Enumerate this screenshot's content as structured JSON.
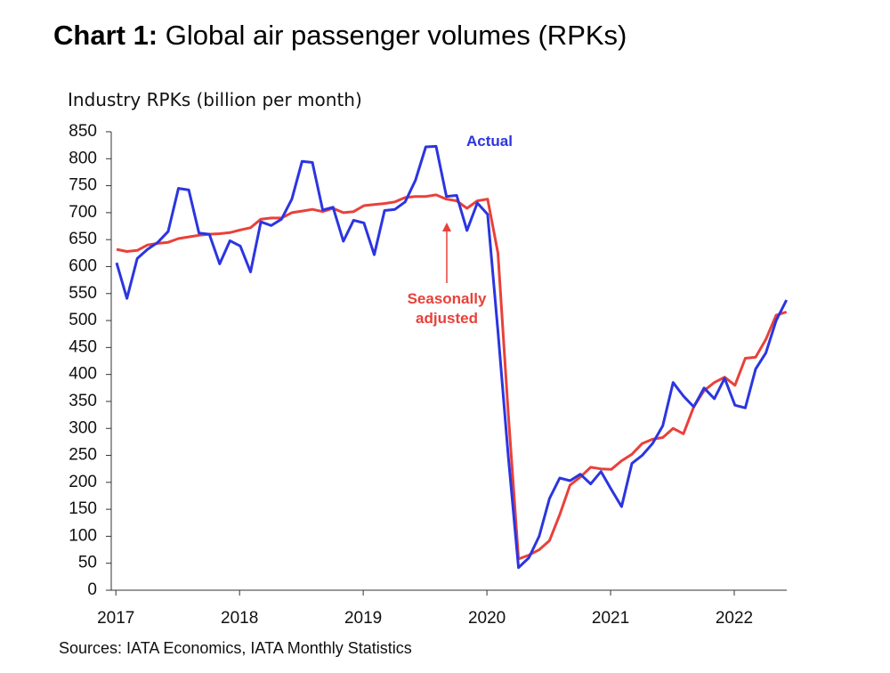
{
  "chart_data": {
    "type": "line",
    "title_label": "Chart 1:",
    "title": "Global air passenger volumes (RPKs)",
    "y_label": "Industry RPKs (billion per month)",
    "source": "Sources: IATA Economics, IATA Monthly Statistics",
    "categories": [
      "2017",
      null,
      null,
      null,
      null,
      null,
      null,
      null,
      null,
      null,
      null,
      null,
      "2018",
      null,
      null,
      null,
      null,
      null,
      null,
      null,
      null,
      null,
      null,
      null,
      "2019",
      null,
      null,
      null,
      null,
      null,
      null,
      null,
      null,
      null,
      null,
      null,
      "2020",
      null,
      null,
      null,
      null,
      null,
      null,
      null,
      null,
      null,
      null,
      null,
      "2021",
      null,
      null,
      null,
      null,
      null,
      null,
      null,
      null,
      null,
      null,
      null,
      "2022",
      null,
      null,
      null,
      null,
      null
    ],
    "ylim": [
      0,
      850
    ],
    "yticks": [
      0,
      50,
      100,
      150,
      200,
      250,
      300,
      350,
      400,
      450,
      500,
      550,
      600,
      650,
      700,
      750,
      800,
      850
    ],
    "grid": false,
    "series": [
      {
        "name": "Actual",
        "color": "#2b35e0",
        "values": [
          607,
          541,
          615,
          632,
          645,
          665,
          745,
          742,
          662,
          660,
          605,
          648,
          638,
          590,
          683,
          676,
          688,
          725,
          795,
          793,
          705,
          710,
          647,
          686,
          681,
          622,
          704,
          706,
          720,
          760,
          822,
          823,
          730,
          732,
          667,
          718,
          697,
          480,
          250,
          42,
          60,
          100,
          170,
          208,
          203,
          215,
          197,
          220,
          187,
          155,
          235,
          250,
          272,
          305,
          385,
          360,
          340,
          375,
          355,
          393,
          343,
          338,
          410,
          440,
          500,
          538
        ]
      },
      {
        "name": "Seasonally adjusted",
        "color": "#e8413a",
        "values": [
          632,
          628,
          630,
          640,
          643,
          645,
          652,
          655,
          658,
          660,
          661,
          663,
          668,
          672,
          688,
          690,
          690,
          700,
          703,
          706,
          702,
          708,
          700,
          702,
          713,
          715,
          717,
          720,
          728,
          730,
          730,
          733,
          725,
          722,
          708,
          722,
          725,
          625,
          330,
          58,
          65,
          75,
          92,
          140,
          195,
          210,
          228,
          225,
          224,
          240,
          252,
          272,
          280,
          283,
          300,
          290,
          340,
          370,
          385,
          395,
          380,
          430,
          432,
          465,
          510,
          516
        ]
      }
    ]
  }
}
